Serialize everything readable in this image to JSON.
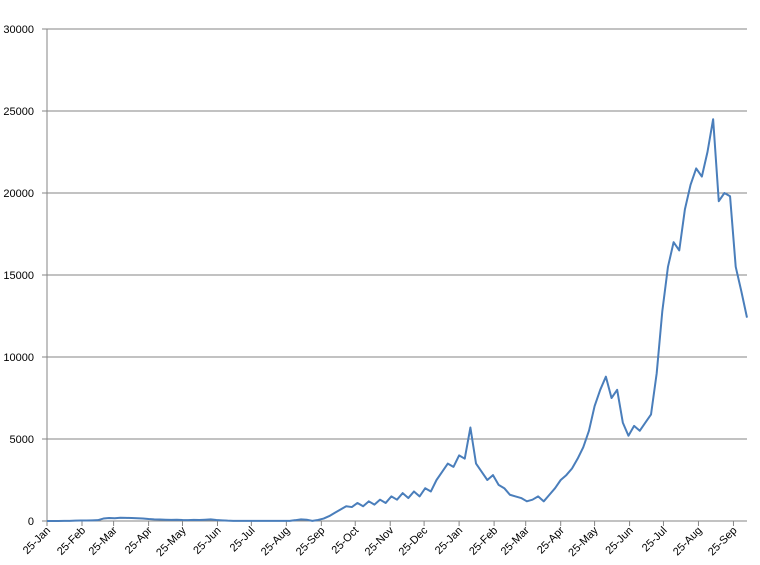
{
  "chart_data": {
    "type": "line",
    "x": [
      0,
      5,
      10,
      15,
      20,
      25,
      30,
      35,
      40,
      45,
      50,
      55,
      60,
      65,
      70,
      75,
      80,
      85,
      90,
      95,
      100,
      105,
      110,
      115,
      120,
      125,
      130,
      135,
      140,
      145,
      150,
      155,
      160,
      165,
      170,
      175,
      180,
      185,
      190,
      195,
      200,
      205,
      210,
      215,
      220,
      225,
      230,
      235,
      240,
      245,
      250,
      255,
      260,
      265,
      270,
      275,
      280,
      285,
      290,
      295,
      300,
      305,
      310,
      315,
      320,
      325,
      330,
      335,
      340,
      345,
      350,
      355,
      360,
      365,
      370,
      375,
      380,
      385,
      390,
      395,
      400,
      405,
      410,
      415,
      420,
      425,
      430,
      435,
      440,
      445,
      450,
      455,
      460,
      465,
      470,
      475,
      480,
      485,
      490,
      495,
      500,
      505,
      510,
      515,
      520,
      525,
      530,
      535,
      540,
      545,
      550,
      555,
      560,
      565,
      570,
      575,
      580,
      585,
      590,
      595,
      600,
      605,
      610,
      615,
      620
    ],
    "series": [
      {
        "color": "#4a7ebb",
        "values": [
          0,
          0,
          0,
          10,
          10,
          20,
          30,
          30,
          40,
          50,
          150,
          180,
          170,
          200,
          190,
          180,
          170,
          150,
          120,
          100,
          90,
          80,
          70,
          80,
          60,
          50,
          70,
          60,
          80,
          100,
          60,
          40,
          20,
          10,
          10,
          10,
          10,
          10,
          10,
          10,
          10,
          10,
          10,
          10,
          50,
          100,
          80,
          10,
          60,
          150,
          300,
          500,
          700,
          900,
          850,
          1100,
          900,
          1200,
          1000,
          1300,
          1100,
          1500,
          1300,
          1700,
          1400,
          1800,
          1500,
          2000,
          1800,
          2500,
          3000,
          3500,
          3300,
          4000,
          3800,
          5700,
          3500,
          3000,
          2500,
          2800,
          2200,
          2000,
          1600,
          1500,
          1400,
          1200,
          1300,
          1500,
          1200,
          1600,
          2000,
          2500,
          2800,
          3200,
          3800,
          4500,
          5500,
          7000,
          8000,
          8800,
          7500,
          8000,
          6000,
          5200,
          5800,
          5500,
          6000,
          6500,
          9000,
          12800,
          15500,
          17000,
          16500,
          19000,
          20500,
          21500,
          21000,
          22500,
          24500,
          19500,
          20000,
          19800,
          15500,
          14000,
          12400
        ]
      }
    ],
    "xlim": [
      0,
      620
    ],
    "xticks": [
      {
        "value": 0,
        "label": "25-Jan"
      },
      {
        "value": 31,
        "label": "25-Feb"
      },
      {
        "value": 59,
        "label": "25-Mar"
      },
      {
        "value": 90,
        "label": "25-Apr"
      },
      {
        "value": 120,
        "label": "25-May"
      },
      {
        "value": 151,
        "label": "25-Jun"
      },
      {
        "value": 181,
        "label": "25-Jul"
      },
      {
        "value": 212,
        "label": "25-Aug"
      },
      {
        "value": 243,
        "label": "25-Sep"
      },
      {
        "value": 273,
        "label": "25-Oct"
      },
      {
        "value": 304,
        "label": "25-Nov"
      },
      {
        "value": 334,
        "label": "25-Dec"
      },
      {
        "value": 365,
        "label": "25-Jan"
      },
      {
        "value": 396,
        "label": "25-Feb"
      },
      {
        "value": 424,
        "label": "25-Mar"
      },
      {
        "value": 455,
        "label": "25-Apr"
      },
      {
        "value": 485,
        "label": "25-May"
      },
      {
        "value": 516,
        "label": "25-Jun"
      },
      {
        "value": 546,
        "label": "25-Jul"
      },
      {
        "value": 577,
        "label": "25-Aug"
      },
      {
        "value": 608,
        "label": "25-Sep"
      }
    ],
    "ylim": [
      0,
      30000
    ],
    "yticks": [
      0,
      5000,
      10000,
      15000,
      20000,
      25000,
      30000
    ],
    "grid": true
  }
}
